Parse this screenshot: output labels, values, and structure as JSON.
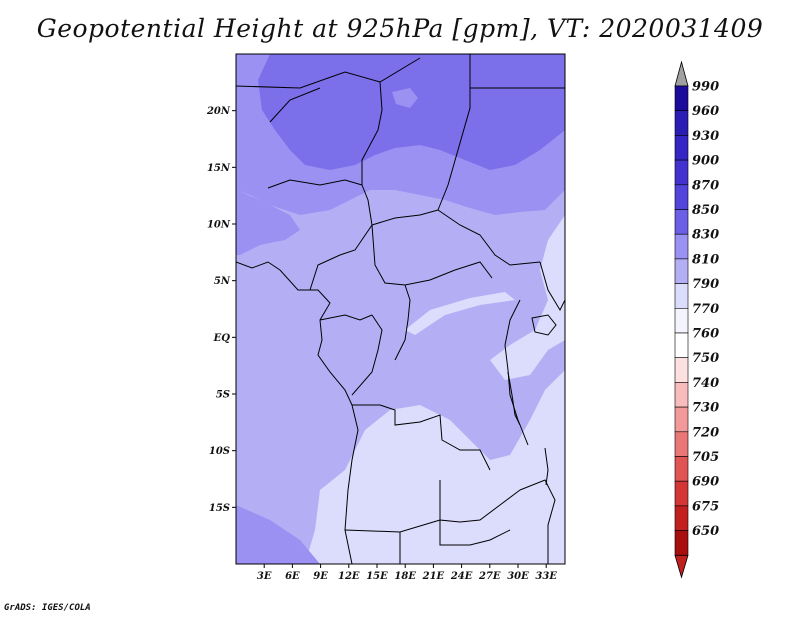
{
  "title": "Geopotential Height at 925hPa [gpm], VT: 2020031409",
  "credit": "GrADS: IGES/COLA",
  "map": {
    "region": "Central Africa",
    "lon_range": [
      0,
      35
    ],
    "lat_range": [
      -20,
      25
    ],
    "lat_ticks": [
      "20N",
      "15N",
      "10N",
      "5N",
      "EQ",
      "5S",
      "10S",
      "15S"
    ],
    "lon_ticks": [
      "3E",
      "6E",
      "9E",
      "12E",
      "15E",
      "18E",
      "21E",
      "24E",
      "27E",
      "30E",
      "33E"
    ],
    "field_colors": {
      "c850": "#7b6fea",
      "c830": "#9a91f2",
      "c810": "#b4aff5",
      "c790": "#dcdcfc",
      "coast": "#000000"
    }
  },
  "colorbar": {
    "levels": [
      "990",
      "960",
      "930",
      "900",
      "870",
      "850",
      "830",
      "810",
      "790",
      "770",
      "760",
      "750",
      "740",
      "730",
      "720",
      "705",
      "690",
      "675",
      "650"
    ],
    "colors": [
      "#1c0c9c",
      "#2a1db3",
      "#3426c4",
      "#4233d1",
      "#5145dc",
      "#6a5fe6",
      "#9a91f2",
      "#b4aff5",
      "#dcdcfc",
      "#f4f4fe",
      "#ffffff",
      "#fde0e0",
      "#f8bcbc",
      "#f29a9a",
      "#e97777",
      "#e05454",
      "#d43636",
      "#c21f1f",
      "#a80e0e"
    ],
    "top_arrow_color": "#a0a0a0",
    "bottom_arrow_color": "#c21f1f"
  }
}
